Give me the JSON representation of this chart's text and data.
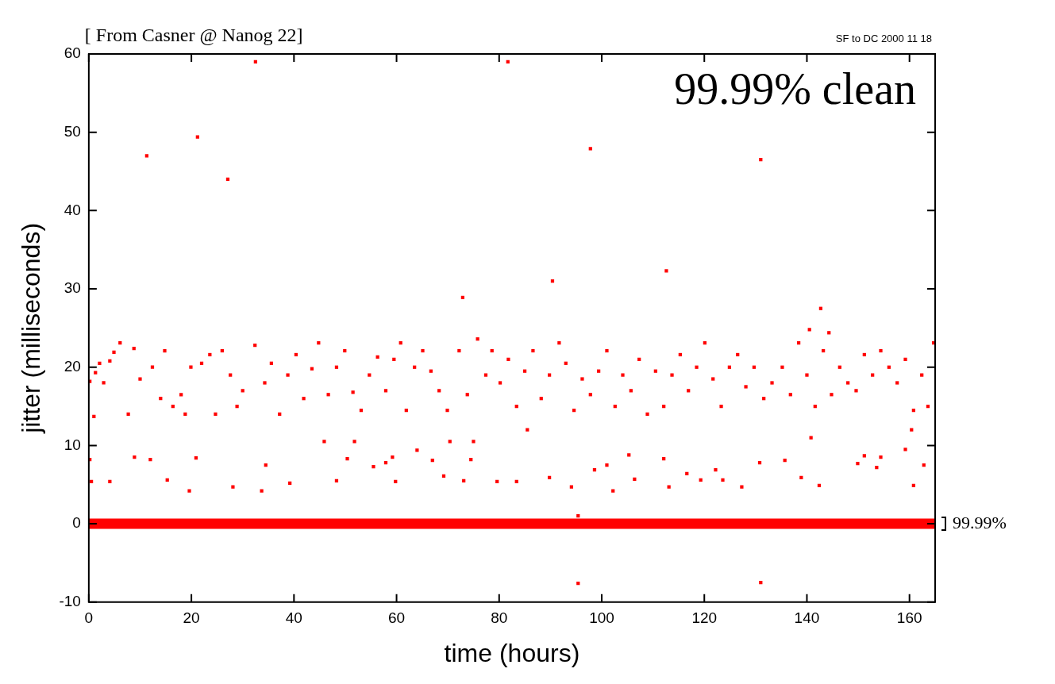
{
  "chart_data": {
    "type": "scatter",
    "title": "[ From Casner @ Nanog 22]",
    "subtitle": "SF to DC 2000 11 18",
    "xlabel": "time (hours)",
    "ylabel": "jitter (milliseconds)",
    "annotations": [
      "99.99% clean",
      {
        "text": "99.99%",
        "x": 165,
        "y": 0
      }
    ],
    "xlim": [
      0,
      165
    ],
    "ylim": [
      -10,
      60
    ],
    "xticks": [
      0,
      20,
      40,
      60,
      80,
      100,
      120,
      140,
      160
    ],
    "yticks": [
      -10,
      0,
      10,
      20,
      30,
      40,
      50,
      60
    ],
    "grid": false,
    "legend": false,
    "marker": "square",
    "series": [
      {
        "color": "#ff0000",
        "x": [
          11.3,
          21.2,
          27.1,
          32.5,
          81.7,
          90.4,
          97.8,
          72.9,
          112.6,
          131.0,
          142.7,
          95.4,
          131.0,
          95.4,
          144.3,
          140.5,
          0.2,
          1,
          1.3,
          2.1,
          2.9,
          4.1,
          4.9,
          6.1,
          7.7,
          8.8,
          10.0,
          12.4,
          14.0,
          14.8,
          16.4,
          18.0,
          18.8,
          19.9,
          22.0,
          23.6,
          24.7,
          26.0,
          27.6,
          28.9,
          30.0,
          32.4,
          34.3,
          35.6,
          37.2,
          38.8,
          40.4,
          41.9,
          43.5,
          44.8,
          46.7,
          48.3,
          49.9,
          51.5,
          53.1,
          54.7,
          56.3,
          57.9,
          59.5,
          60.8,
          61.9,
          63.5,
          65.1,
          66.7,
          68.3,
          69.9,
          72.2,
          73.8,
          75.8,
          77.4,
          78.6,
          80.2,
          81.8,
          83.4,
          85.0,
          86.6,
          88.2,
          89.8,
          91.7,
          93.0,
          94.6,
          96.2,
          97.8,
          99.4,
          101.0,
          102.6,
          104.1,
          105.7,
          107.3,
          108.9,
          110.5,
          112.1,
          113.7,
          115.3,
          116.9,
          118.5,
          120.1,
          121.7,
          123.3,
          124.9,
          126.5,
          128.1,
          129.7,
          131.6,
          133.2,
          135.2,
          136.8,
          138.4,
          140.0,
          141.6,
          143.2,
          144.8,
          146.4,
          148.0,
          149.6,
          151.2,
          152.8,
          154.4,
          156.0,
          157.6,
          159.2,
          160.8,
          162.4,
          163.6,
          164.7,
          0.2,
          0.5,
          4.1,
          8.9,
          12.0,
          15.3,
          19.6,
          20.9,
          28.1,
          33.7,
          34.5,
          39.2,
          45.9,
          48.3,
          51.8,
          50.4,
          55.5,
          57.9,
          59.8,
          59.2,
          64.0,
          67.0,
          69.2,
          70.4,
          73.1,
          74.5,
          75.0,
          79.6,
          83.4,
          85.5,
          89.8,
          94.1,
          98.6,
          101.0,
          102.2,
          105.3,
          106.4,
          112.1,
          113.1,
          116.6,
          119.3,
          122.2,
          123.6,
          127.3,
          130.8,
          135.7,
          138.9,
          142.4,
          140.8,
          149.9,
          151.2,
          154.4,
          153.6,
          159.2,
          160.8,
          162.8,
          160.4
        ],
        "values": [
          47.0,
          49.4,
          44.0,
          59.0,
          59.0,
          31.0,
          47.9,
          28.9,
          32.3,
          46.5,
          27.5,
          -7.6,
          -7.5,
          1.0,
          24.4,
          24.8,
          18.2,
          13.7,
          19.3,
          20.5,
          18.0,
          20.8,
          21.9,
          23.1,
          14.0,
          22.4,
          18.5,
          20.0,
          16.0,
          22.1,
          15.0,
          16.5,
          14.0,
          20.0,
          20.5,
          21.6,
          14.0,
          22.1,
          19.0,
          15.0,
          17.0,
          22.8,
          18.0,
          20.5,
          14.0,
          19.0,
          21.6,
          16.0,
          19.8,
          23.1,
          16.5,
          20.0,
          22.1,
          16.8,
          14.5,
          19.0,
          21.3,
          17.0,
          21.0,
          23.1,
          14.5,
          20.0,
          22.1,
          19.5,
          17.0,
          14.5,
          22.1,
          16.5,
          23.6,
          19.0,
          22.1,
          18.0,
          21.0,
          15.0,
          19.5,
          22.1,
          16.0,
          19.0,
          23.1,
          20.5,
          14.5,
          18.5,
          16.5,
          19.5,
          22.1,
          15.0,
          19.0,
          17.0,
          21.0,
          14.0,
          19.5,
          15.0,
          19.0,
          21.6,
          17.0,
          20.0,
          23.1,
          18.5,
          15.0,
          20.0,
          21.6,
          17.5,
          20.0,
          16.0,
          18.0,
          20.0,
          16.5,
          23.1,
          19.0,
          15.0,
          22.1,
          16.5,
          20.0,
          18.0,
          17.0,
          21.6,
          19.0,
          22.1,
          20.0,
          18.0,
          21.0,
          14.5,
          19.0,
          15.0,
          23.1,
          8.2,
          5.4,
          5.4,
          8.5,
          8.2,
          5.6,
          4.2,
          8.4,
          4.7,
          4.2,
          7.5,
          5.2,
          10.5,
          5.5,
          10.5,
          8.3,
          7.3,
          7.8,
          5.4,
          8.5,
          9.4,
          8.1,
          6.1,
          10.5,
          5.5,
          8.2,
          10.5,
          5.4,
          5.4,
          12.0,
          5.9,
          4.7,
          6.9,
          7.5,
          4.2,
          8.8,
          5.7,
          8.3,
          4.7,
          6.4,
          5.6,
          6.9,
          5.6,
          4.7,
          7.8,
          8.1,
          5.9,
          4.9,
          11.0,
          7.7,
          8.7,
          8.5,
          7.2,
          9.5,
          4.9,
          7.5,
          12.0
        ]
      },
      {
        "type": "line",
        "marker": "none",
        "color": "#ff0000",
        "x": [
          0,
          165
        ],
        "values": [
          0,
          0
        ]
      }
    ]
  }
}
